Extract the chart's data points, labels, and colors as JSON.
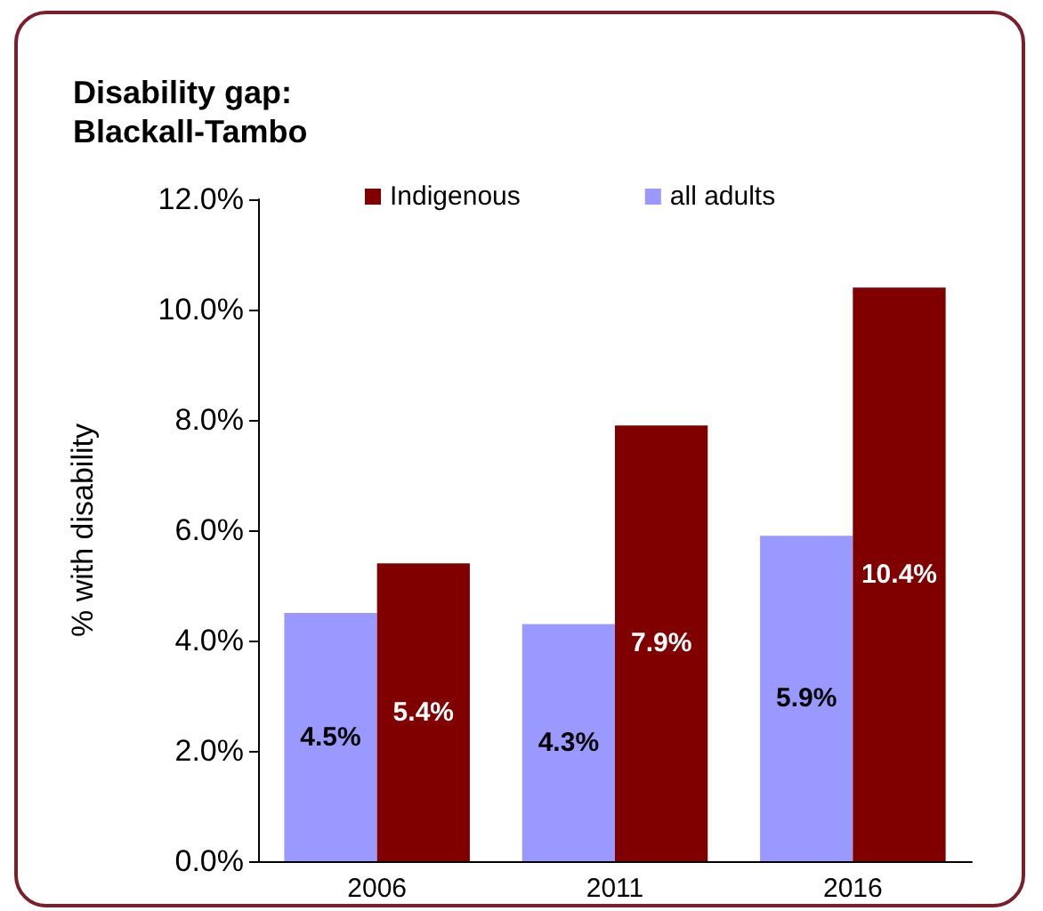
{
  "chart_data": {
    "type": "bar",
    "title": "Disability gap:\nBlackall-Tambo",
    "ylabel": "% with disability",
    "categories": [
      "2006",
      "2011",
      "2016"
    ],
    "series": [
      {
        "name": "all adults",
        "color": "#9999ff",
        "values": [
          4.5,
          4.3,
          5.9
        ],
        "value_labels": [
          "4.5%",
          "4.3%",
          "5.9%"
        ]
      },
      {
        "name": "Indigenous",
        "color": "#800000",
        "values": [
          5.4,
          7.9,
          10.4
        ],
        "value_labels": [
          "5.4%",
          "7.9%",
          "10.4%"
        ]
      }
    ],
    "ylim": [
      0,
      12
    ],
    "yticks": [
      {
        "value": 0,
        "label": "0.0%"
      },
      {
        "value": 2,
        "label": "2.0%"
      },
      {
        "value": 4,
        "label": "4.0%"
      },
      {
        "value": 6,
        "label": "6.0%"
      },
      {
        "value": 8,
        "label": "8.0%"
      },
      {
        "value": 10,
        "label": "10.0%"
      },
      {
        "value": 12,
        "label": "12.0%"
      }
    ],
    "grid": false,
    "legend": "top"
  }
}
